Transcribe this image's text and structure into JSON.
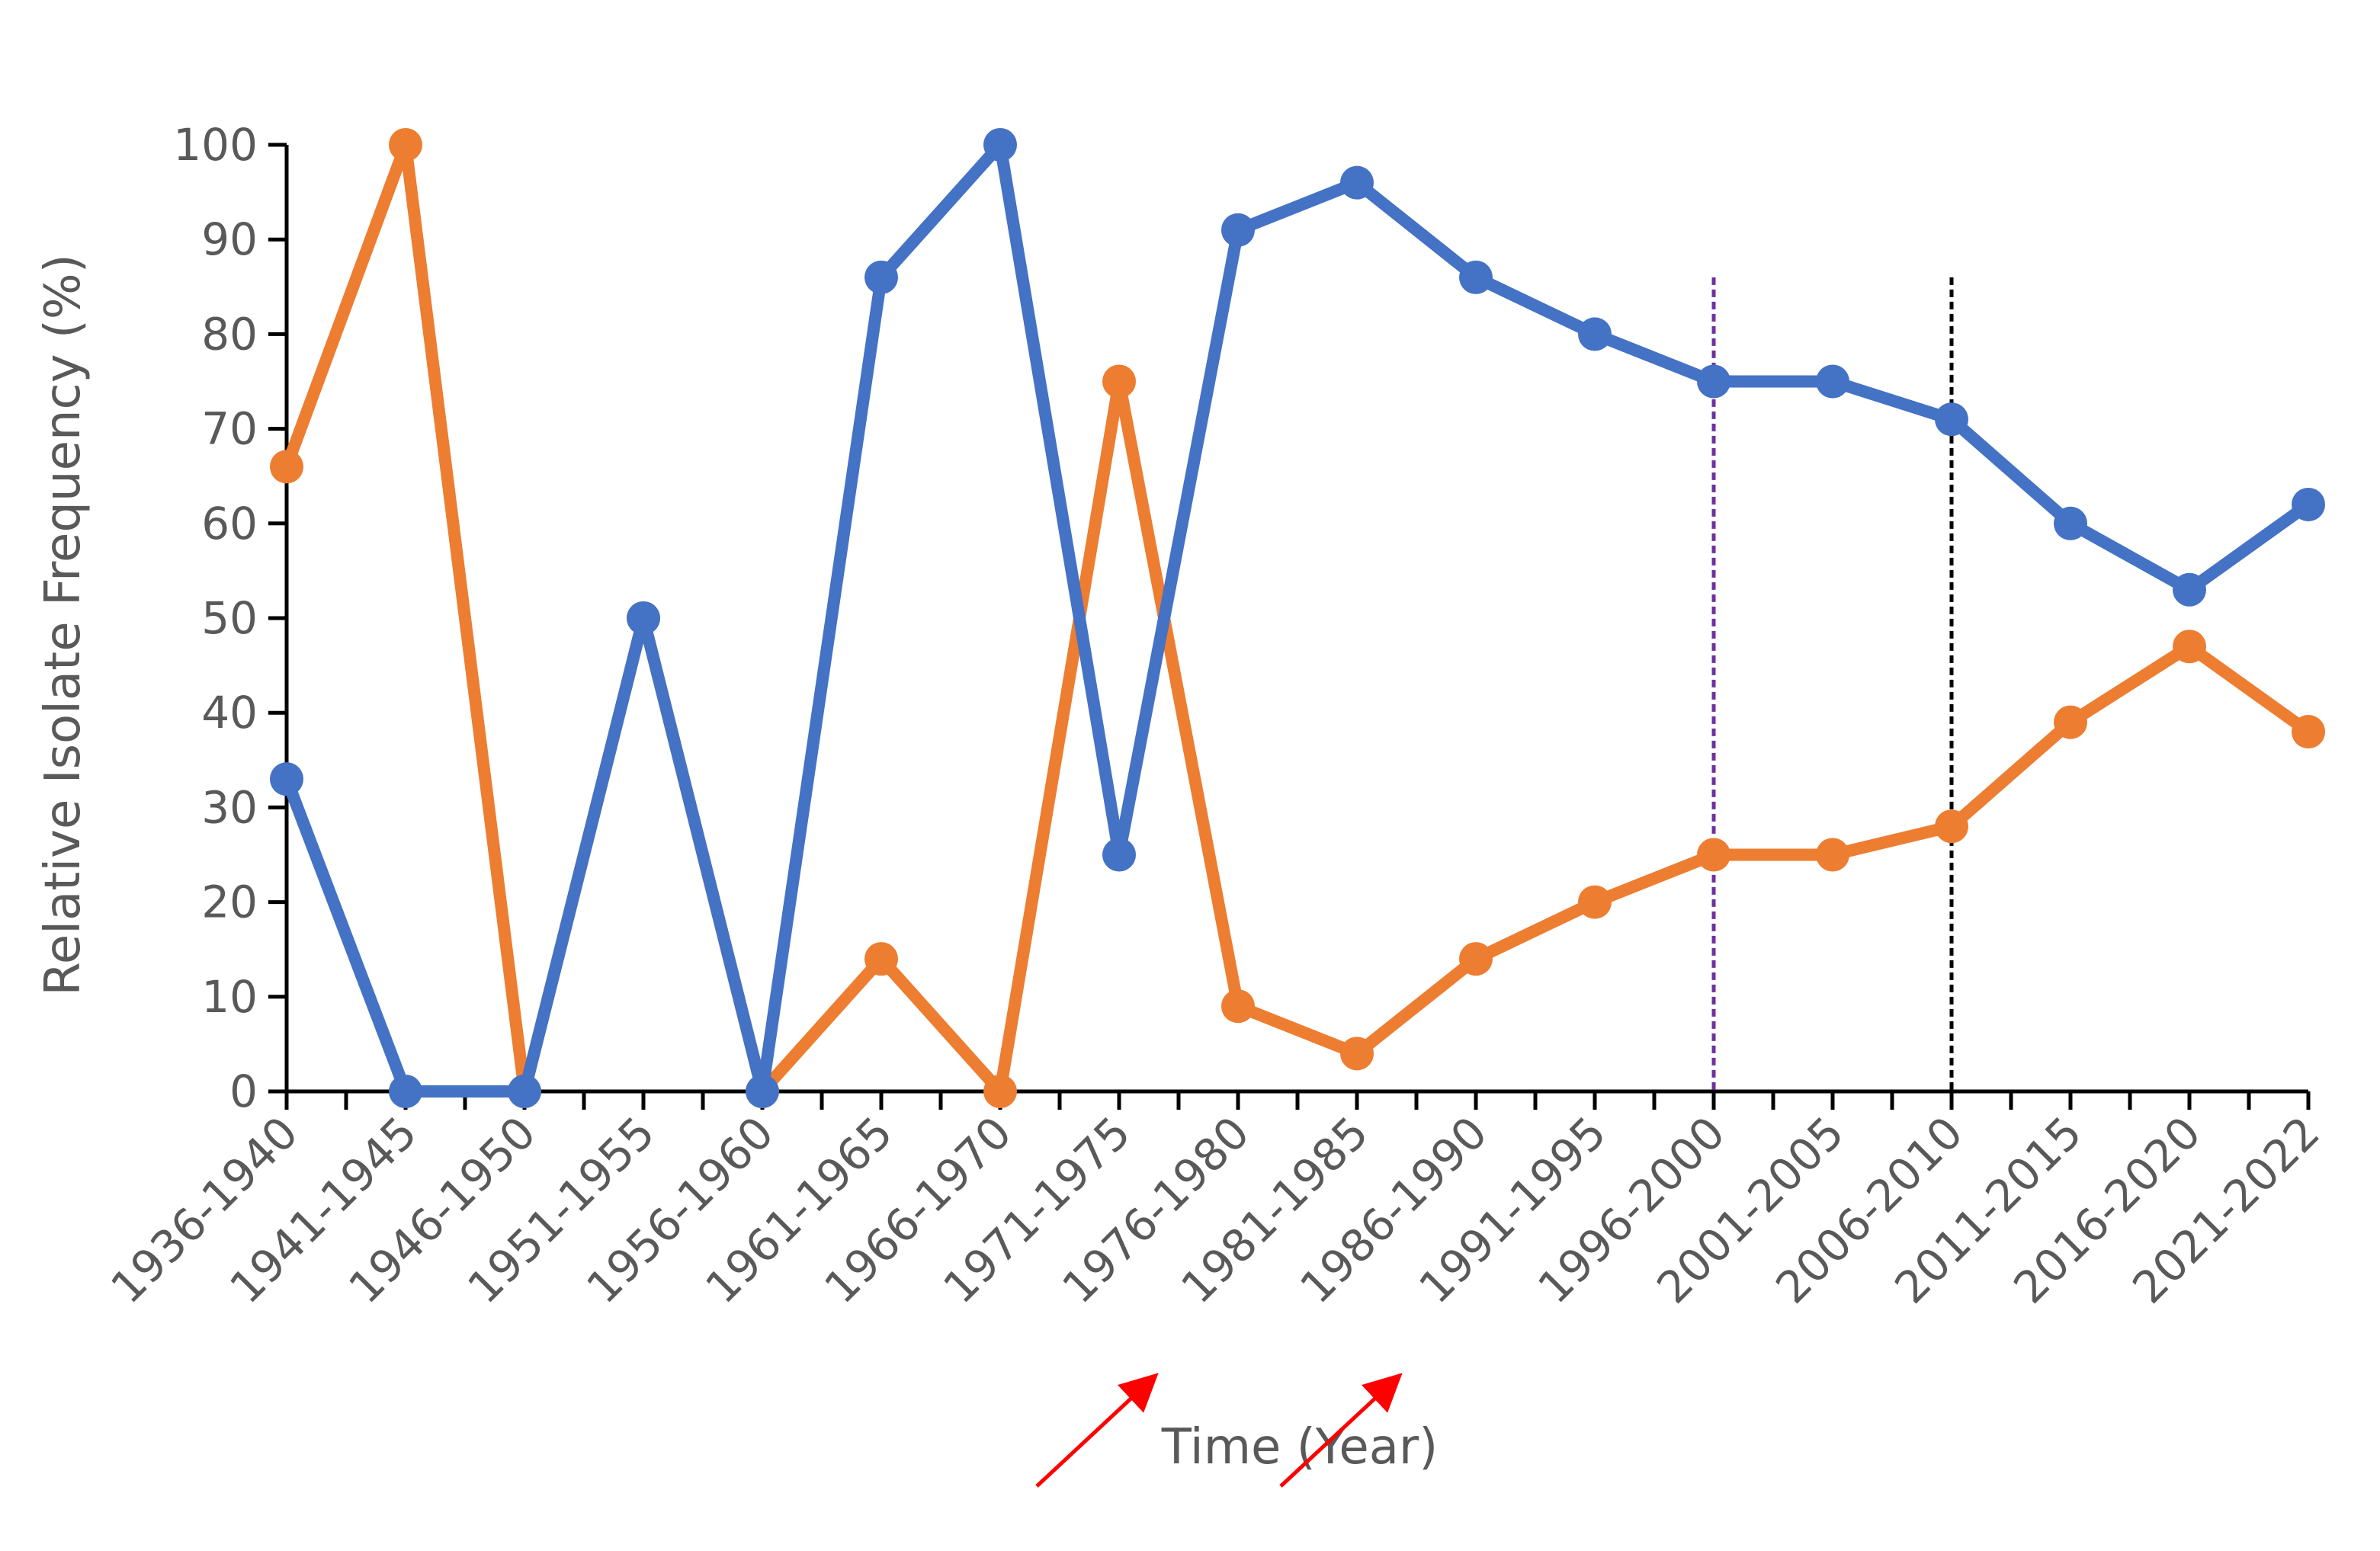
{
  "chart_data": {
    "type": "line",
    "title": "",
    "xlabel": "Time (Year)",
    "ylabel": "Relative Isolate Frequency (%)",
    "ylim": [
      0,
      100
    ],
    "yticks": [
      0,
      10,
      20,
      30,
      40,
      50,
      60,
      70,
      80,
      90,
      100
    ],
    "grid": false,
    "legend": "none",
    "categories": [
      "1936-1940",
      "1941-1945",
      "1946-1950",
      "1951-1955",
      "1956-1960",
      "1961-1965",
      "1966-1970",
      "1971-1975",
      "1976-1980",
      "1981-1985",
      "1986-1990",
      "1991-1995",
      "1996-2000",
      "2001-2005",
      "2006-2010",
      "2011-2015",
      "2016-2020",
      "2021-2022"
    ],
    "series": [
      {
        "color": "#4472C4",
        "values": [
          33,
          0,
          0,
          50,
          0,
          86,
          100,
          25,
          91,
          96,
          86,
          80,
          75,
          75,
          71,
          60,
          53,
          62
        ]
      },
      {
        "color": "#ED7D31",
        "values": [
          66,
          100,
          0,
          50,
          0,
          14,
          0,
          75,
          9,
          4,
          14,
          20,
          25,
          25,
          28,
          39,
          47,
          38
        ]
      }
    ],
    "reference_lines": [
      {
        "at_category": "1996-2000",
        "color": "#7030A0",
        "style": "dashed",
        "to_value": 86
      },
      {
        "at_category": "2006-2010",
        "color": "#000000",
        "style": "dashed",
        "to_value": 86
      }
    ],
    "annotations": [
      {
        "type": "arrow",
        "color": "#FF0000",
        "points_to": "1976-1980"
      },
      {
        "type": "arrow",
        "color": "#FF0000",
        "points_to": "1986-1990"
      }
    ]
  }
}
